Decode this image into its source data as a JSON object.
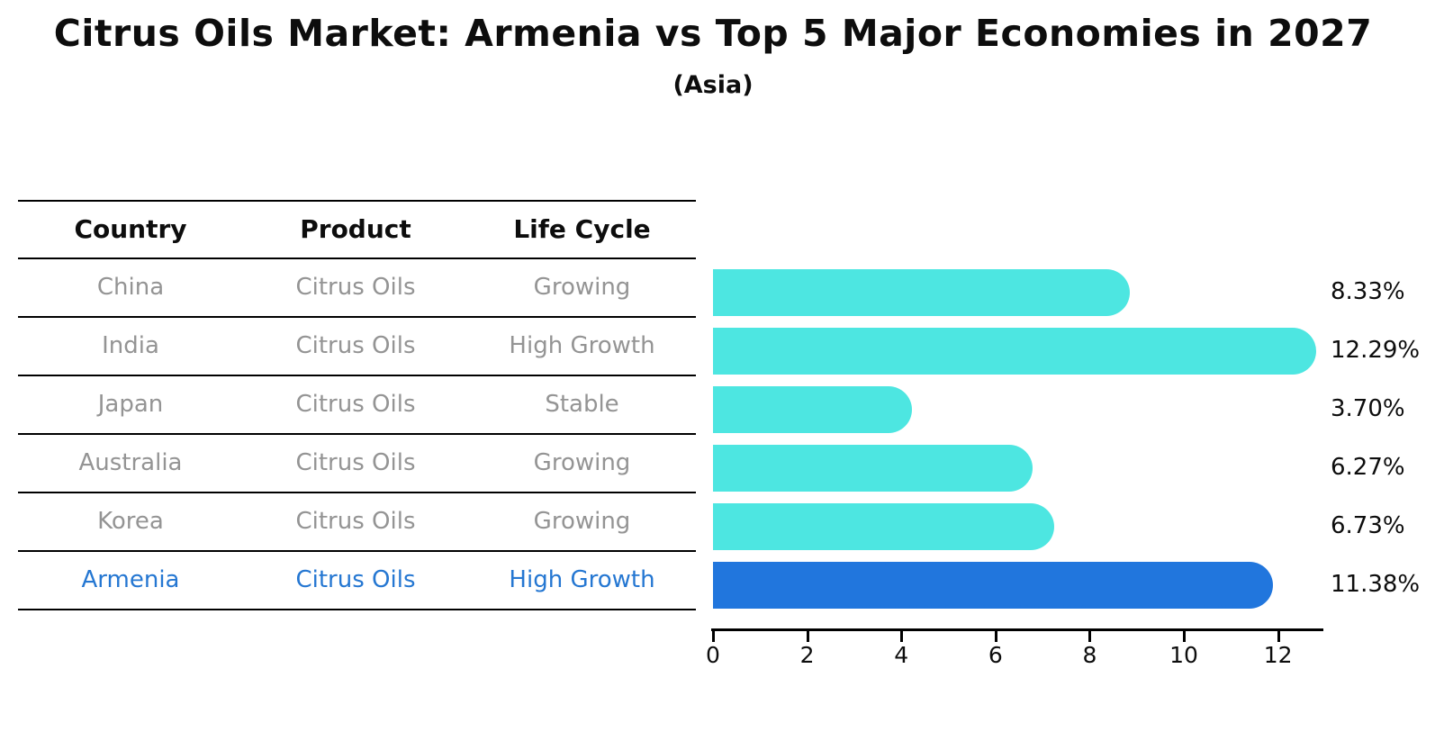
{
  "title": "Citrus Oils Market: Armenia vs Top 5 Major Economies in 2027",
  "subtitle": "(Asia)",
  "table": {
    "headers": [
      "Country",
      "Product",
      "Life Cycle"
    ],
    "rows": [
      {
        "country": "China",
        "product": "Citrus Oils",
        "life_cycle": "Growing",
        "highlight": false
      },
      {
        "country": "India",
        "product": "Citrus Oils",
        "life_cycle": "High Growth",
        "highlight": false
      },
      {
        "country": "Japan",
        "product": "Citrus Oils",
        "life_cycle": "Stable",
        "highlight": false
      },
      {
        "country": "Australia",
        "product": "Citrus Oils",
        "life_cycle": "Growing",
        "highlight": false
      },
      {
        "country": "Korea",
        "product": "Citrus Oils",
        "life_cycle": "Growing",
        "highlight": false
      },
      {
        "country": "Armenia",
        "product": "Citrus Oils",
        "life_cycle": "High Growth",
        "highlight": true
      }
    ]
  },
  "chart_data": {
    "type": "bar",
    "orientation": "horizontal",
    "title": "Citrus Oils Market: Armenia vs Top 5 Major Economies in 2027",
    "subtitle": "(Asia)",
    "categories": [
      "China",
      "India",
      "Japan",
      "Australia",
      "Korea",
      "Armenia"
    ],
    "values": [
      8.33,
      12.29,
      3.7,
      6.27,
      6.73,
      11.38
    ],
    "value_labels": [
      "8.33%",
      "12.29%",
      "3.70%",
      "6.27%",
      "6.73%",
      "11.38%"
    ],
    "highlight_index": 5,
    "xlim": [
      0,
      12.9
    ],
    "xticks": [
      0,
      2,
      4,
      6,
      8,
      10,
      12
    ],
    "xtick_labels": [
      "0",
      "2",
      "4",
      "6",
      "8",
      "10",
      "12"
    ],
    "grid": false,
    "legend": false
  },
  "colors": {
    "bar_default": "#4de6e1",
    "bar_highlight": "#2176dd",
    "highlight_text": "#2577d2",
    "table_text": "#949494",
    "header_text": "#0d0d0d",
    "axis": "#000000"
  }
}
